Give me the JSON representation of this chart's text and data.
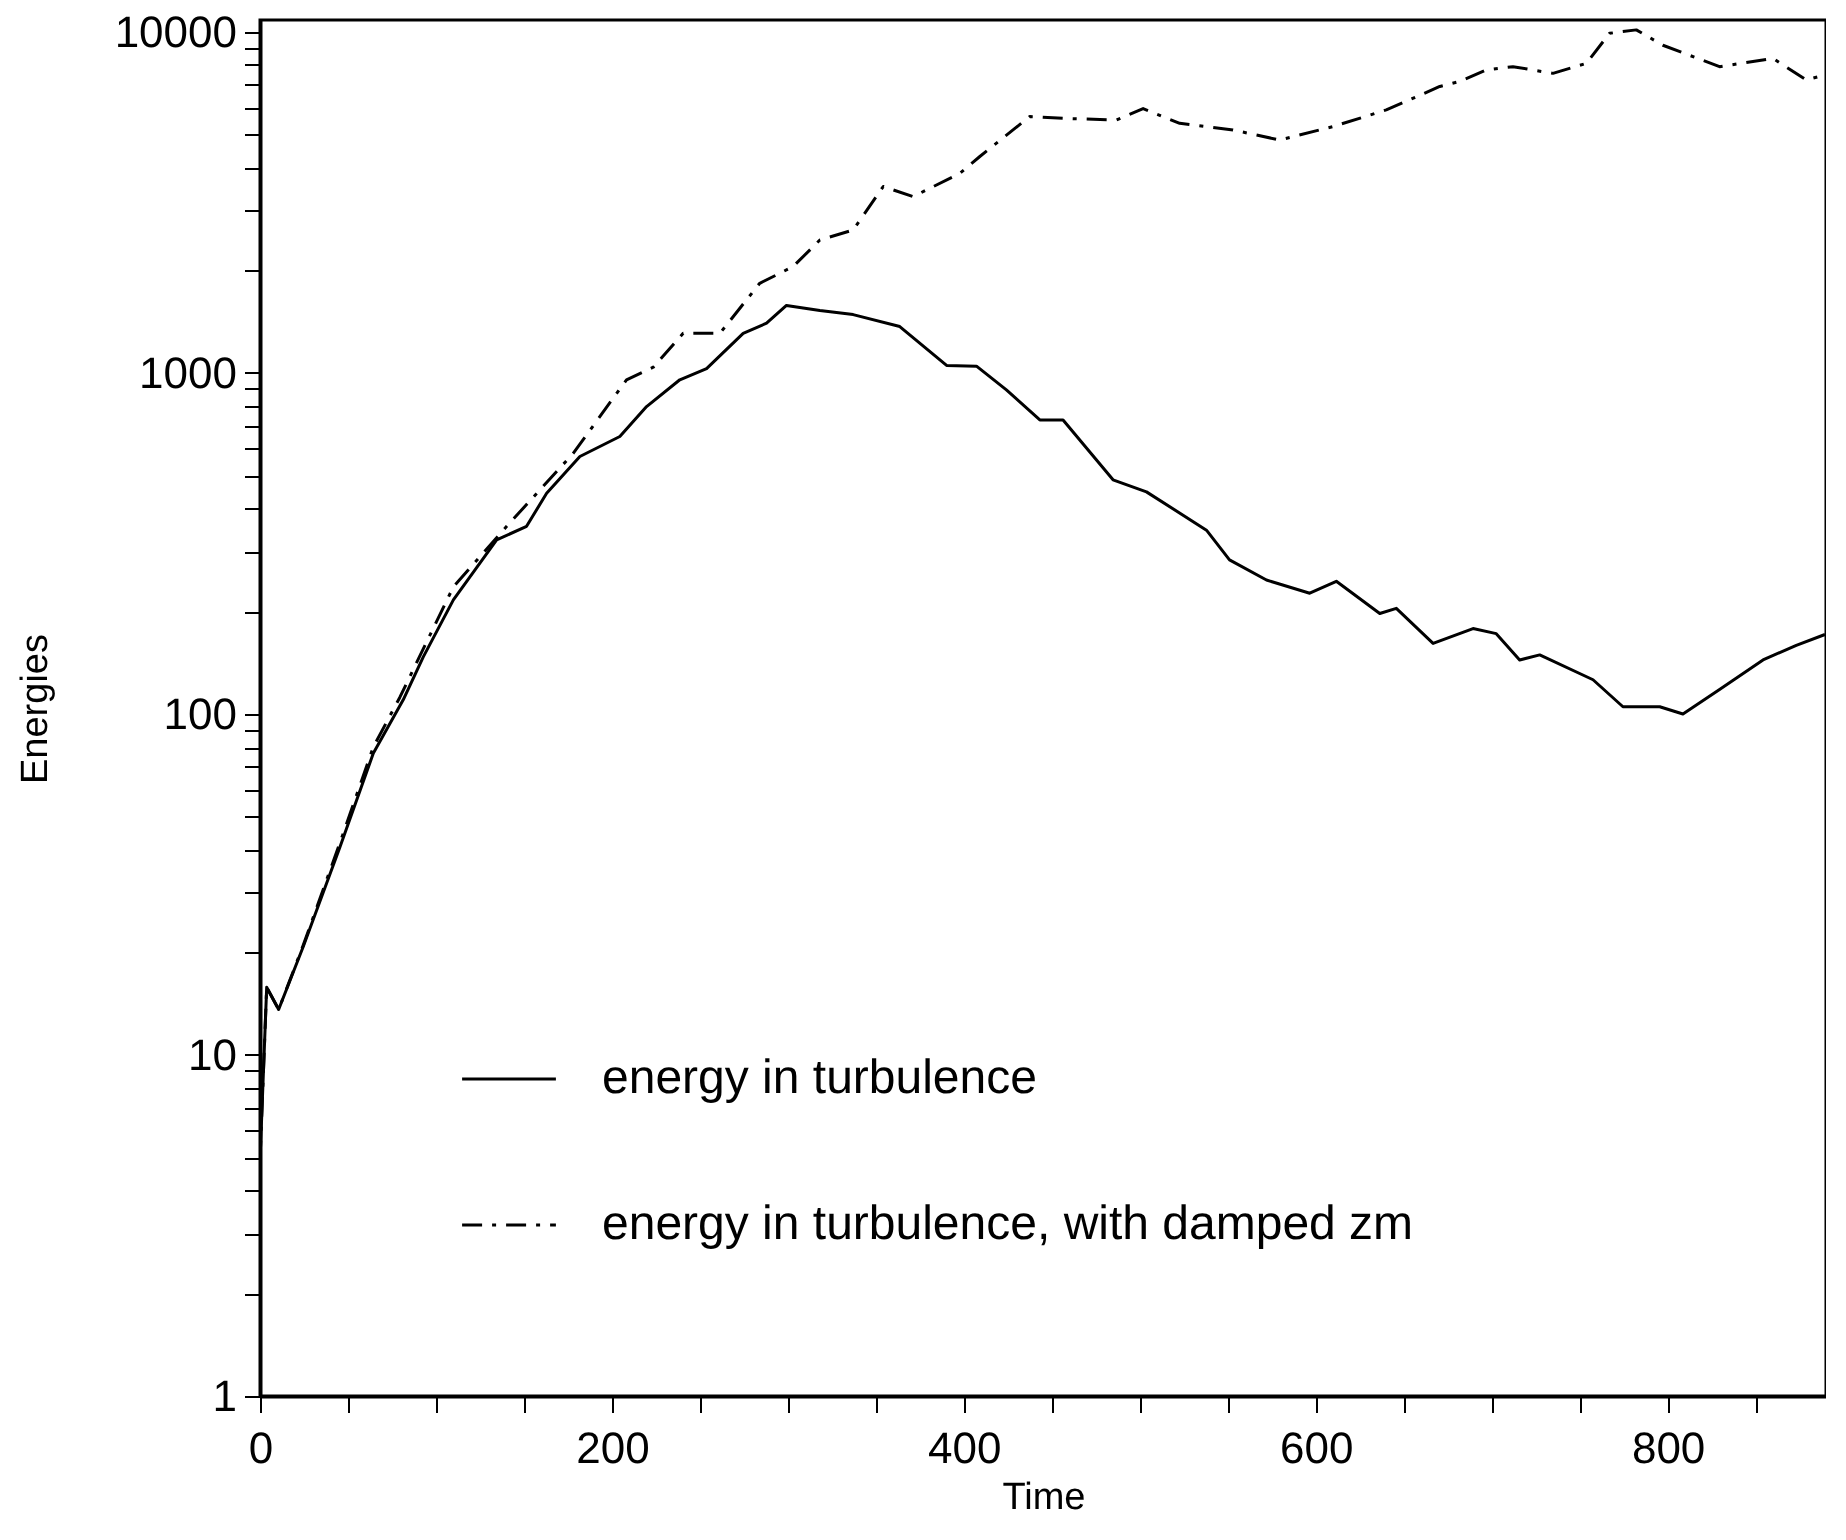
{
  "chart_data": {
    "type": "line",
    "xlabel": "Time",
    "ylabel": "Energies",
    "log": "y",
    "xlim": [
      0,
      890
    ],
    "ylim": [
      1,
      10840
    ],
    "xticks": [
      0,
      {
        "value": 50,
        "label": null
      },
      {
        "value": 100,
        "label": null
      },
      {
        "value": 150,
        "label": null
      },
      200,
      {
        "value": 250,
        "label": null
      },
      {
        "value": 300,
        "label": null
      },
      {
        "value": 350,
        "label": null
      },
      400,
      {
        "value": 450,
        "label": null
      },
      {
        "value": 500,
        "label": null
      },
      {
        "value": 550,
        "label": null
      },
      600,
      {
        "value": 650,
        "label": null
      },
      {
        "value": 700,
        "label": null
      },
      {
        "value": 750,
        "label": null
      },
      800,
      {
        "value": 850,
        "label": null
      }
    ],
    "yticks": [
      1,
      {
        "value": 2,
        "label": null
      },
      {
        "value": 3,
        "label": null
      },
      {
        "value": 4,
        "label": null
      },
      {
        "value": 5,
        "label": null
      },
      {
        "value": 6,
        "label": null
      },
      {
        "value": 7,
        "label": null
      },
      {
        "value": 8,
        "label": null
      },
      {
        "value": 9,
        "label": null
      },
      10,
      {
        "value": 20,
        "label": null
      },
      {
        "value": 30,
        "label": null
      },
      {
        "value": 40,
        "label": null
      },
      {
        "value": 50,
        "label": null
      },
      {
        "value": 60,
        "label": null
      },
      {
        "value": 70,
        "label": null
      },
      {
        "value": 80,
        "label": null
      },
      {
        "value": 90,
        "label": null
      },
      100,
      {
        "value": 200,
        "label": null
      },
      {
        "value": 300,
        "label": null
      },
      {
        "value": 400,
        "label": null
      },
      {
        "value": 500,
        "label": null
      },
      {
        "value": 600,
        "label": null
      },
      {
        "value": 700,
        "label": null
      },
      {
        "value": 800,
        "label": null
      },
      {
        "value": 900,
        "label": null
      },
      1000,
      {
        "value": 2000,
        "label": null
      },
      {
        "value": 3000,
        "label": null
      },
      {
        "value": 4000,
        "label": null
      },
      {
        "value": 5000,
        "label": null
      },
      {
        "value": 6000,
        "label": null
      },
      {
        "value": 7000,
        "label": null
      },
      {
        "value": 8000,
        "label": null
      },
      {
        "value": 9000,
        "label": null
      },
      10000
    ],
    "grid": false,
    "legend": "bottom left",
    "series": [
      {
        "name": "energy in turbulence",
        "color": "#000000",
        "line_style": "solid",
        "x": [
          0,
          3.8,
          10.6,
          24.6,
          45.5,
          64.4,
          81.4,
          92.8,
          109.9,
          134.5,
          151.5,
          162.9,
          181.8,
          204.5,
          219.7,
          238.6,
          253.8,
          274.6,
          287.9,
          299.2,
          318.2,
          337.1,
          363.6,
          390.2,
          407.2,
          424.2,
          443.2,
          456.4,
          484.8,
          503.8,
          537.9,
          551,
          572,
          596.6,
          611.7,
          636.4,
          645.8,
          666.7,
          689.4,
          702.6,
          715.9,
          727.3,
          757.6,
          774.6,
          795.5,
          808.7,
          829.5,
          854.2,
          873.1,
          889.4
        ],
        "values": [
          4.9,
          15.8,
          13.6,
          20.8,
          40.8,
          76.7,
          110,
          147,
          216,
          324,
          355,
          444,
          569,
          651,
          797,
          955,
          1030,
          1307,
          1399,
          1578,
          1524,
          1483,
          1368,
          1052,
          1047,
          892,
          728,
          728,
          486,
          448,
          346,
          283,
          247,
          226,
          245,
          197,
          204,
          161,
          178,
          172,
          144,
          149,
          126,
          105,
          105,
          100,
          118,
          144,
          159,
          171
        ]
      },
      {
        "name": "energy in turbulence, with damped zm",
        "color": "#000000",
        "line_style": "dashdot",
        "x": [
          0,
          3.8,
          10.6,
          24.6,
          45.5,
          64.4,
          79.5,
          109.9,
          140.2,
          178,
          208.3,
          223.5,
          240.5,
          261.4,
          284,
          303,
          318.2,
          337.1,
          354.2,
          371.2,
          397.7,
          409.1,
          437.5,
          458.3,
          486.7,
          501.9,
          522.7,
          553,
          579.5,
          609.9,
          640.1,
          670.5,
          681.8,
          697,
          712.1,
          734.8,
          753.8,
          767,
          782.2,
          797.3,
          829.5,
          859.9,
          878.8,
          889.4
        ],
        "values": [
          4.9,
          15.8,
          13.6,
          21,
          42,
          80,
          112,
          236,
          355,
          581,
          955,
          1040,
          1307,
          1307,
          1832,
          2051,
          2455,
          2626,
          3521,
          3290,
          3847,
          4313,
          5650,
          5575,
          5520,
          5960,
          5395,
          5160,
          4820,
          5280,
          5907,
          6920,
          7160,
          7740,
          7910,
          7560,
          8090,
          9910,
          10140,
          9140,
          7910,
          8360,
          7230,
          7480
        ]
      }
    ]
  }
}
